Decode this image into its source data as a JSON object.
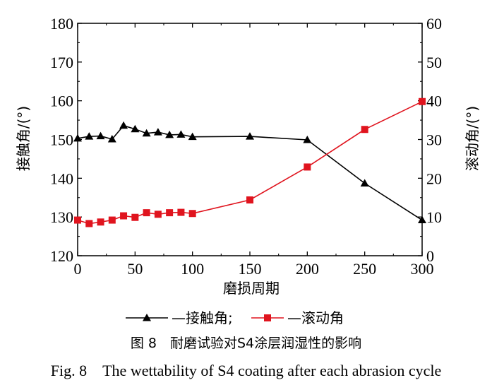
{
  "chart_data": {
    "type": "line",
    "x_label": "磨损周期",
    "y_left_label": "接触角/(°)",
    "y_right_label": "滚动角/(°)",
    "x_range": [
      0,
      300
    ],
    "y_left_range": [
      120,
      180
    ],
    "y_right_range": [
      0,
      60
    ],
    "x_ticks": [
      "0",
      "50",
      "100",
      "150",
      "200",
      "250",
      "300"
    ],
    "y_left_ticks": [
      "120",
      "130",
      "140",
      "150",
      "160",
      "170",
      "180"
    ],
    "y_right_ticks": [
      "0",
      "10",
      "20",
      "30",
      "40",
      "50",
      "60"
    ],
    "series": [
      {
        "name": "—接触角;",
        "axis": "left",
        "marker": "triangle",
        "color": "#000000",
        "x": [
          0,
          10,
          20,
          30,
          40,
          50,
          60,
          70,
          80,
          90,
          100,
          150,
          200,
          250,
          300
        ],
        "y": [
          150.3,
          150.8,
          150.9,
          150.1,
          153.6,
          152.7,
          151.6,
          151.9,
          151.2,
          151.3,
          150.7,
          150.8,
          149.9,
          138.7,
          129.2
        ]
      },
      {
        "name": "—滚动角",
        "axis": "right",
        "marker": "square",
        "color": "#e0141e",
        "x": [
          0,
          10,
          20,
          30,
          40,
          50,
          60,
          70,
          80,
          90,
          100,
          150,
          200,
          250,
          300
        ],
        "y": [
          9.2,
          8.3,
          8.7,
          9.2,
          10.3,
          9.9,
          11.1,
          10.7,
          11.1,
          11.2,
          10.9,
          14.4,
          22.9,
          32.6,
          39.8
        ]
      }
    ],
    "grid": false,
    "legend_position": "bottom"
  },
  "caption": {
    "zh": "图 8　耐磨试验对S4涂层润湿性的影响",
    "en": "Fig. 8　The wettability of S4 coating after each abrasion cycle"
  }
}
